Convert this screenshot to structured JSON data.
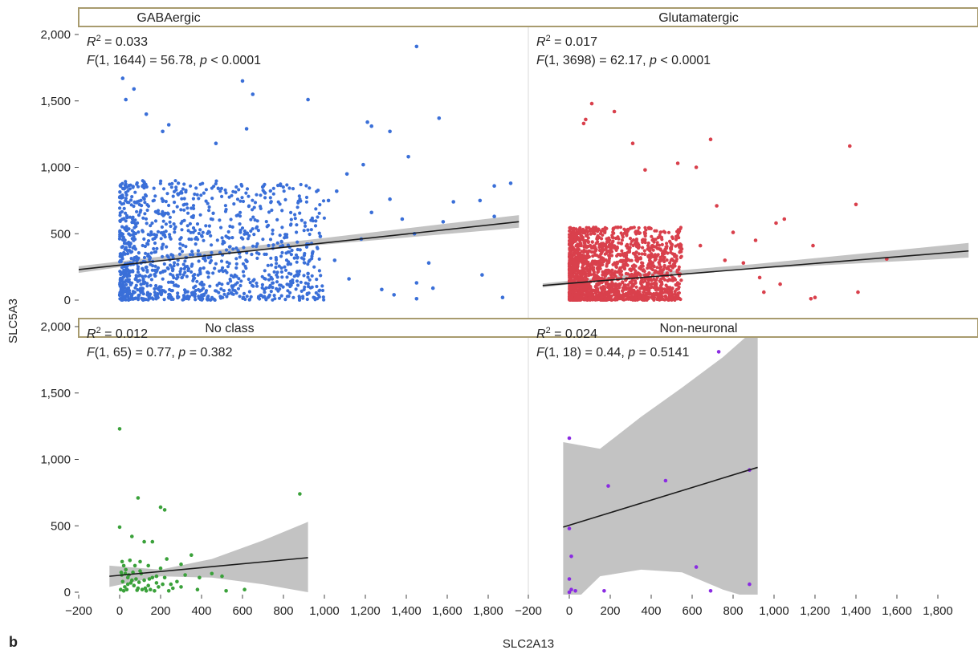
{
  "panel_letter": "b",
  "colors": {
    "GABAergic": "#3a6fd8",
    "Glutamatergic": "#d9404c",
    "No class": "#3aa13a",
    "Non-neuronal": "#8a2be2",
    "fit_line": "#1a1a1a",
    "ci_band": "#b8b8b8",
    "strip_border": "#a89b6e",
    "divider": "#d8d8d8"
  },
  "chart_data": {
    "type": "scatter",
    "layout": "facet 2x2",
    "xlabel": "SLC2A13",
    "ylabel": "SLC5A3",
    "xlim": [
      -200,
      1950
    ],
    "ylim": [
      -60,
      2050
    ],
    "x_ticks": [
      -200,
      0,
      200,
      400,
      600,
      800,
      1000,
      1200,
      1400,
      1600,
      1800
    ],
    "x_tick_labels": [
      "−200",
      "0",
      "200",
      "400",
      "600",
      "800",
      "1,000",
      "1,200",
      "1,400",
      "1,600",
      "1,800"
    ],
    "y_ticks": [
      0,
      500,
      1000,
      1500,
      2000
    ],
    "y_tick_labels": [
      "0",
      "500",
      "1,000",
      "1,500",
      "2,000"
    ],
    "grid": false,
    "legend": "none",
    "panels": [
      {
        "name": "GABAergic",
        "r2": "0.033",
        "f_stat": "F(1, 1644) = 56.78, p < 0.0001",
        "fit": {
          "x": [
            -200,
            1950
          ],
          "y": [
            230,
            590
          ]
        },
        "ci_band": {
          "x": [
            -200,
            400,
            900,
            1950
          ],
          "lower": [
            205,
            335,
            405,
            545
          ],
          "upper": [
            255,
            365,
            450,
            640
          ]
        },
        "scatter_cloud": {
          "x_range": [
            0,
            1000
          ],
          "y_range": [
            0,
            900
          ],
          "count": 1200
        },
        "points": [
          [
            15,
            1670
          ],
          [
            70,
            1590
          ],
          [
            30,
            1510
          ],
          [
            130,
            1400
          ],
          [
            210,
            1270
          ],
          [
            240,
            1320
          ],
          [
            470,
            1180
          ],
          [
            600,
            1650
          ],
          [
            650,
            1550
          ],
          [
            620,
            1290
          ],
          [
            920,
            1510
          ],
          [
            1210,
            1340
          ],
          [
            1230,
            1310
          ],
          [
            1320,
            1270
          ],
          [
            1410,
            1080
          ],
          [
            1450,
            1910
          ],
          [
            1560,
            1370
          ],
          [
            1190,
            1020
          ],
          [
            1110,
            950
          ],
          [
            1020,
            750
          ],
          [
            1230,
            660
          ],
          [
            1320,
            760
          ],
          [
            1380,
            610
          ],
          [
            1440,
            500
          ],
          [
            1510,
            280
          ],
          [
            1580,
            590
          ],
          [
            1630,
            740
          ],
          [
            1760,
            750
          ],
          [
            1830,
            860
          ],
          [
            1910,
            880
          ],
          [
            1830,
            630
          ],
          [
            1770,
            190
          ],
          [
            1870,
            20
          ],
          [
            1450,
            130
          ],
          [
            1530,
            90
          ],
          [
            1280,
            80
          ],
          [
            1120,
            160
          ],
          [
            1180,
            460
          ],
          [
            1050,
            300
          ],
          [
            920,
            200
          ],
          [
            1060,
            820
          ],
          [
            980,
            480
          ],
          [
            1450,
            10
          ],
          [
            1340,
            40
          ]
        ]
      },
      {
        "name": "Glutamatergic",
        "r2": "0.017",
        "f_stat": "F(1, 3698) = 62.17, p < 0.0001",
        "fit": {
          "x": [
            -130,
            1950
          ],
          "y": [
            110,
            370
          ]
        },
        "ci_band": {
          "x": [
            -130,
            300,
            900,
            1950
          ],
          "lower": [
            95,
            175,
            235,
            320
          ],
          "upper": [
            125,
            195,
            270,
            430
          ]
        },
        "scatter_cloud": {
          "x_range": [
            0,
            550
          ],
          "y_range": [
            0,
            550
          ],
          "count": 1800
        },
        "points": [
          [
            70,
            1330
          ],
          [
            80,
            1360
          ],
          [
            110,
            1480
          ],
          [
            220,
            1420
          ],
          [
            310,
            1180
          ],
          [
            370,
            980
          ],
          [
            530,
            1030
          ],
          [
            620,
            1000
          ],
          [
            690,
            1210
          ],
          [
            800,
            510
          ],
          [
            910,
            450
          ],
          [
            1010,
            580
          ],
          [
            1050,
            610
          ],
          [
            1190,
            410
          ],
          [
            1370,
            1160
          ],
          [
            1400,
            720
          ],
          [
            1550,
            310
          ],
          [
            1410,
            60
          ],
          [
            1200,
            20
          ],
          [
            1180,
            10
          ],
          [
            930,
            170
          ],
          [
            760,
            300
          ],
          [
            850,
            280
          ],
          [
            640,
            410
          ],
          [
            720,
            710
          ],
          [
            950,
            60
          ],
          [
            1030,
            120
          ]
        ]
      },
      {
        "name": "No class",
        "r2": "0.012",
        "f_stat": "F(1, 65) = 0.77, p = 0.382",
        "fit": {
          "x": [
            -50,
            920
          ],
          "y": [
            120,
            260
          ]
        },
        "ci_band": {
          "x": [
            -50,
            200,
            450,
            700,
            920
          ],
          "lower": [
            40,
            120,
            110,
            60,
            0
          ],
          "upper": [
            200,
            170,
            250,
            390,
            530
          ]
        },
        "points": [
          [
            0,
            1230
          ],
          [
            90,
            710
          ],
          [
            200,
            640
          ],
          [
            220,
            620
          ],
          [
            880,
            740
          ],
          [
            0,
            490
          ],
          [
            60,
            420
          ],
          [
            120,
            380
          ],
          [
            160,
            380
          ],
          [
            100,
            230
          ],
          [
            140,
            200
          ],
          [
            230,
            250
          ],
          [
            350,
            280
          ],
          [
            300,
            210
          ],
          [
            450,
            140
          ],
          [
            390,
            110
          ],
          [
            500,
            120
          ],
          [
            20,
            200
          ],
          [
            30,
            170
          ],
          [
            10,
            130
          ],
          [
            40,
            110
          ],
          [
            60,
            90
          ],
          [
            70,
            50
          ],
          [
            90,
            30
          ],
          [
            110,
            20
          ],
          [
            130,
            10
          ],
          [
            150,
            20
          ],
          [
            170,
            10
          ],
          [
            190,
            40
          ],
          [
            210,
            60
          ],
          [
            240,
            10
          ],
          [
            260,
            30
          ],
          [
            280,
            80
          ],
          [
            320,
            130
          ],
          [
            40,
            60
          ],
          [
            20,
            10
          ],
          [
            50,
            240
          ],
          [
            80,
            100
          ],
          [
            100,
            160
          ],
          [
            180,
            120
          ],
          [
            5,
            20
          ],
          [
            15,
            80
          ],
          [
            25,
            40
          ],
          [
            35,
            20
          ],
          [
            45,
            130
          ],
          [
            65,
            150
          ],
          [
            75,
            200
          ],
          [
            120,
            90
          ],
          [
            140,
            50
          ],
          [
            160,
            110
          ],
          [
            200,
            180
          ],
          [
            220,
            110
          ],
          [
            250,
            60
          ],
          [
            300,
            40
          ],
          [
            380,
            20
          ],
          [
            520,
            10
          ],
          [
            610,
            20
          ],
          [
            180,
            70
          ],
          [
            8,
            150
          ],
          [
            12,
            230
          ],
          [
            28,
            140
          ],
          [
            55,
            70
          ],
          [
            85,
            15
          ],
          [
            95,
            75
          ],
          [
            105,
            140
          ],
          [
            125,
            30
          ],
          [
            145,
            100
          ]
        ]
      },
      {
        "name": "Non-neuronal",
        "r2": "0.024",
        "f_stat": "F(1, 18) = 0.44, p = 0.5141",
        "fit": {
          "x": [
            -30,
            920
          ],
          "y": [
            490,
            940
          ]
        },
        "ci_band": {
          "x": [
            -30,
            150,
            350,
            550,
            750,
            920
          ],
          "lower": [
            -150,
            120,
            170,
            150,
            20,
            -60
          ],
          "upper": [
            1130,
            1080,
            1320,
            1540,
            1770,
            2000
          ]
        },
        "points": [
          [
            0,
            1160
          ],
          [
            730,
            1810
          ],
          [
            190,
            800
          ],
          [
            470,
            840
          ],
          [
            880,
            920
          ],
          [
            0,
            480
          ],
          [
            10,
            270
          ],
          [
            620,
            190
          ],
          [
            0,
            100
          ],
          [
            10,
            20
          ],
          [
            30,
            10
          ],
          [
            0,
            0
          ],
          [
            170,
            10
          ],
          [
            690,
            10
          ],
          [
            880,
            60
          ]
        ]
      }
    ]
  }
}
